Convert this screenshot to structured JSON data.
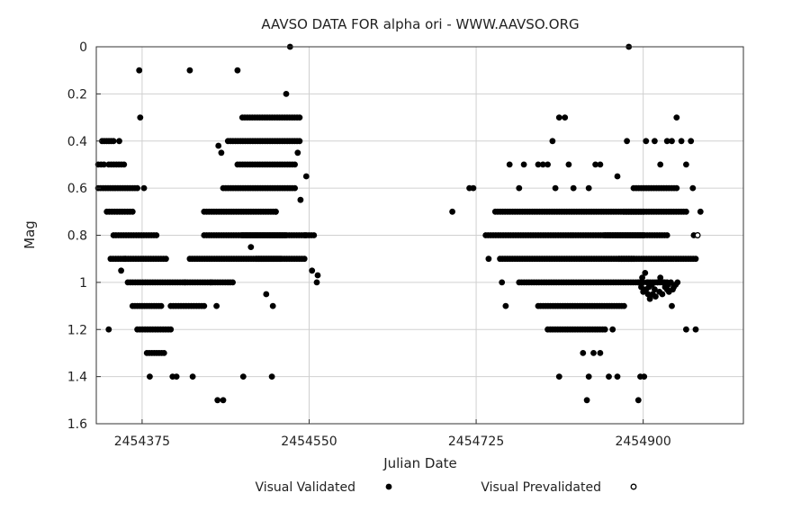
{
  "chart_data": {
    "type": "scatter",
    "title": "AAVSO DATA FOR alpha ori - WWW.AAVSO.ORG",
    "xlabel": "Julian Date",
    "ylabel": "Mag",
    "xlim": [
      2454327,
      2455005
    ],
    "ylim": [
      0,
      1.6
    ],
    "y_inverted": true,
    "grid": true,
    "xticks": [
      2454375,
      2454550,
      2454725,
      2454900
    ],
    "xtick_labels": [
      "2454375",
      "2454550",
      "2454725",
      "2454900"
    ],
    "yticks": [
      0,
      0.2,
      0.4,
      0.6,
      0.8,
      1,
      1.2,
      1.4,
      1.6
    ],
    "ytick_labels": [
      "0",
      "0.2",
      "0.4",
      "0.6",
      "0.8",
      "1",
      "1.2",
      "1.4",
      "1.6"
    ],
    "legend": [
      {
        "label": "Visual Validated",
        "marker": "filled-dot"
      },
      {
        "label": "Visual Prevalidated",
        "marker": "open-dot"
      }
    ],
    "series": [
      {
        "name": "Visual Validated",
        "marker": "filled",
        "segments": [
          [
            2454329,
            2454335,
            0.5
          ],
          [
            2454333,
            2454345,
            0.4
          ],
          [
            2454329,
            2454370,
            0.6
          ],
          [
            2454340,
            2454356,
            0.5
          ],
          [
            2454338,
            2454365,
            0.7
          ],
          [
            2454345,
            2454390,
            0.8
          ],
          [
            2454342,
            2454400,
            0.9
          ],
          [
            2454360,
            2454420,
            1.0
          ],
          [
            2454365,
            2454395,
            1.1
          ],
          [
            2454370,
            2454405,
            1.2
          ],
          [
            2454380,
            2454398,
            1.3
          ],
          [
            2454405,
            2454440,
            1.1
          ],
          [
            2454420,
            2454470,
            1.0
          ],
          [
            2454425,
            2454520,
            0.9
          ],
          [
            2454440,
            2454525,
            0.8
          ],
          [
            2454440,
            2454515,
            0.7
          ],
          [
            2454460,
            2454535,
            0.6
          ],
          [
            2454475,
            2454535,
            0.5
          ],
          [
            2454465,
            2454540,
            0.4
          ],
          [
            2454480,
            2454540,
            0.3
          ],
          [
            2454480,
            2454555,
            0.8
          ],
          [
            2454495,
            2454545,
            0.9
          ],
          [
            2454735,
            2454900,
            0.8
          ],
          [
            2454745,
            2454900,
            0.7
          ],
          [
            2454750,
            2454890,
            0.9
          ],
          [
            2454770,
            2454900,
            1.0
          ],
          [
            2454790,
            2454880,
            1.1
          ],
          [
            2454800,
            2454860,
            1.2
          ],
          [
            2454860,
            2454925,
            0.8
          ],
          [
            2454875,
            2454955,
            0.9
          ],
          [
            2454880,
            2454945,
            0.7
          ],
          [
            2454890,
            2454935,
            0.6
          ],
          [
            2454905,
            2454925,
            1.0
          ]
        ],
        "points": [
          [
            2454372,
            0.1
          ],
          [
            2454425,
            0.1
          ],
          [
            2454475,
            0.1
          ],
          [
            2454373,
            0.3
          ],
          [
            2454377,
            0.6
          ],
          [
            2454351,
            0.4
          ],
          [
            2454357,
            0.9
          ],
          [
            2454353,
            0.95
          ],
          [
            2454340,
            1.2
          ],
          [
            2454383,
            1.4
          ],
          [
            2454407,
            1.4
          ],
          [
            2454411,
            1.4
          ],
          [
            2454428,
            1.4
          ],
          [
            2454481,
            1.4
          ],
          [
            2454511,
            1.4
          ],
          [
            2454454,
            1.5
          ],
          [
            2454460,
            1.5
          ],
          [
            2454455,
            0.42
          ],
          [
            2454447,
            1.0
          ],
          [
            2454453,
            1.1
          ],
          [
            2454489,
            0.85
          ],
          [
            2454505,
            1.05
          ],
          [
            2454512,
            1.1
          ],
          [
            2454526,
            0.2
          ],
          [
            2454538,
            0.45
          ],
          [
            2454547,
            0.55
          ],
          [
            2454541,
            0.65
          ],
          [
            2454553,
            0.95
          ],
          [
            2454558,
            1.0
          ],
          [
            2454559,
            0.97
          ],
          [
            2454546,
            0.8
          ],
          [
            2454515,
            0.7
          ],
          [
            2454458,
            0.45
          ],
          [
            2454530,
            0.0
          ],
          [
            2454700,
            0.7
          ],
          [
            2454718,
            0.6
          ],
          [
            2454722,
            0.6
          ],
          [
            2454738,
            0.9
          ],
          [
            2454752,
            1.0
          ],
          [
            2454756,
            1.1
          ],
          [
            2454760,
            0.5
          ],
          [
            2454770,
            0.6
          ],
          [
            2454775,
            0.5
          ],
          [
            2454790,
            0.5
          ],
          [
            2454795,
            0.5
          ],
          [
            2454800,
            0.5
          ],
          [
            2454805,
            0.4
          ],
          [
            2454808,
            0.6
          ],
          [
            2454812,
            0.3
          ],
          [
            2454818,
            0.3
          ],
          [
            2454822,
            0.5
          ],
          [
            2454827,
            0.6
          ],
          [
            2454843,
            0.6
          ],
          [
            2454850,
            0.5
          ],
          [
            2454855,
            0.5
          ],
          [
            2454812,
            1.4
          ],
          [
            2454837,
            1.3
          ],
          [
            2454843,
            1.4
          ],
          [
            2454848,
            1.3
          ],
          [
            2454855,
            1.3
          ],
          [
            2454864,
            1.4
          ],
          [
            2454868,
            1.2
          ],
          [
            2454841,
            1.5
          ],
          [
            2454885,
            0.0
          ],
          [
            2454883,
            0.4
          ],
          [
            2454873,
            1.4
          ],
          [
            2454895,
            1.5
          ],
          [
            2454903,
            0.4
          ],
          [
            2454912,
            0.4
          ],
          [
            2454918,
            0.5
          ],
          [
            2454925,
            0.4
          ],
          [
            2454930,
            0.4
          ],
          [
            2454935,
            0.3
          ],
          [
            2454940,
            0.4
          ],
          [
            2454945,
            0.5
          ],
          [
            2454950,
            0.4
          ],
          [
            2454952,
            0.6
          ],
          [
            2454953,
            0.8
          ],
          [
            2454960,
            0.7
          ],
          [
            2454945,
            1.2
          ],
          [
            2454955,
            1.2
          ],
          [
            2454930,
            1.1
          ],
          [
            2454897,
            1.4
          ],
          [
            2454901,
            1.4
          ],
          [
            2454873,
            0.55
          ],
          [
            2454895,
            1.0
          ],
          [
            2454898,
            1.02
          ],
          [
            2454900,
            1.04
          ],
          [
            2454903,
            1.03
          ],
          [
            2454905,
            1.05
          ],
          [
            2454907,
            1.07
          ],
          [
            2454910,
            1.05
          ],
          [
            2454912,
            1.03
          ],
          [
            2454915,
            1.0
          ],
          [
            2454918,
            0.98
          ],
          [
            2454921,
            1.0
          ],
          [
            2454923,
            1.02
          ],
          [
            2454926,
            1.01
          ],
          [
            2454929,
            1.0
          ],
          [
            2454931,
            1.03
          ],
          [
            2454904,
            1.0
          ],
          [
            2454909,
            1.01
          ],
          [
            2454917,
            1.04
          ],
          [
            2454920,
            1.05
          ],
          [
            2454925,
            1.03
          ],
          [
            2454899,
            0.98
          ],
          [
            2454902,
            0.96
          ],
          [
            2454906,
            1.02
          ],
          [
            2454913,
            1.06
          ],
          [
            2454927,
            1.04
          ],
          [
            2454932,
            1.02
          ],
          [
            2454934,
            1.01
          ],
          [
            2454936,
            1.0
          ]
        ]
      },
      {
        "name": "Visual Prevalidated",
        "marker": "open",
        "points": [
          [
            2454957,
            0.8
          ]
        ]
      }
    ]
  }
}
